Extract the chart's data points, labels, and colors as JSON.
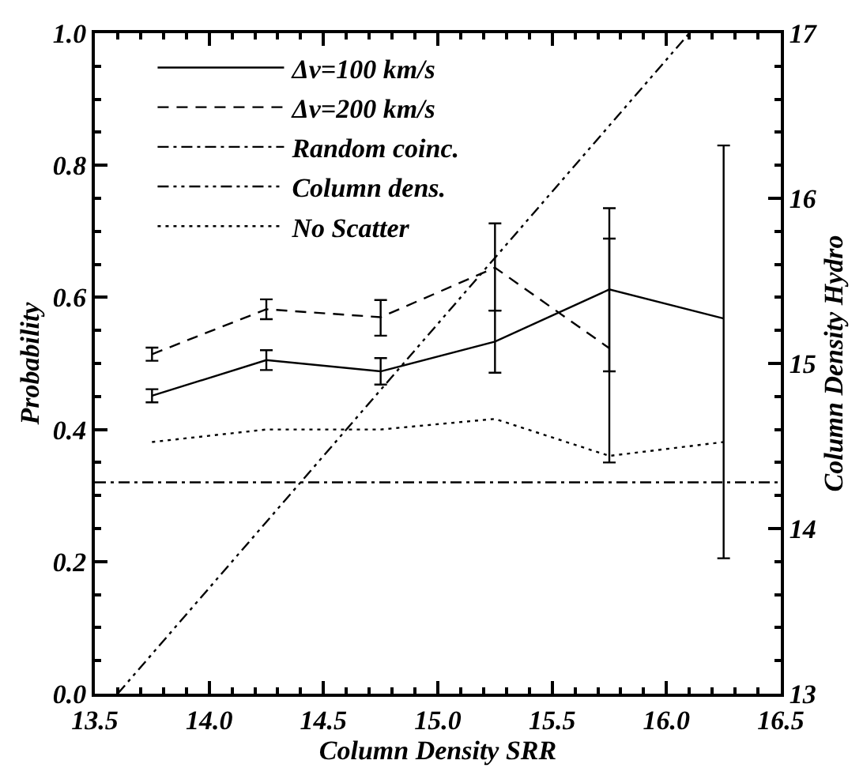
{
  "chart_data": {
    "type": "line",
    "xlabel": "Column Density SRR",
    "ylabel": "Probability",
    "y2label": "Column Density Hydro",
    "x": [
      13.75,
      14.25,
      14.75,
      15.25,
      15.75,
      16.25
    ],
    "series": [
      {
        "name": "Δv=100 km/s",
        "color": "#000000",
        "line_style": "solid",
        "values": [
          0.451,
          0.505,
          0.488,
          0.533,
          0.612,
          0.568
        ],
        "errors": [
          0.01,
          0.015,
          0.02,
          [
            0.486,
            0.58
          ],
          [
            0.488,
            0.689
          ],
          [
            0.205,
            0.83
          ]
        ]
      },
      {
        "name": "Δv=200 km/s",
        "color": "#000000",
        "line_style": "dashed",
        "values": [
          0.514,
          0.582,
          0.57,
          0.645,
          0.523,
          null
        ],
        "errors": [
          0.01,
          0.015,
          [
            0.542,
            0.596
          ],
          [
            0.58,
            0.712
          ],
          [
            0.35,
            0.735
          ],
          null
        ]
      },
      {
        "name": "Random coinc.",
        "color": "#000000",
        "line_style": "dashdot",
        "x": [
          13.5,
          16.5
        ],
        "values": [
          0.32,
          0.32
        ]
      },
      {
        "name": "Column dens.",
        "color": "#000000",
        "line_style": "dashdotdot",
        "axis": "y2",
        "x": [
          13.6,
          16.1
        ],
        "values": [
          13,
          17
        ]
      },
      {
        "name": "No Scatter",
        "color": "#000000",
        "line_style": "dotted",
        "values": [
          0.381,
          0.4,
          0.4,
          0.416,
          0.36,
          0.381
        ]
      }
    ],
    "xlim": [
      13.5,
      16.5
    ],
    "xticks": [
      {
        "value": 13.5,
        "label": "13.5"
      },
      {
        "value": 14.0,
        "label": "14.0"
      },
      {
        "value": 14.5,
        "label": "14.5"
      },
      {
        "value": 15.0,
        "label": "15.0"
      },
      {
        "value": 15.5,
        "label": "15.5"
      },
      {
        "value": 16.0,
        "label": "16.0"
      },
      {
        "value": 16.5,
        "label": "16.5"
      }
    ],
    "ylim": [
      0,
      1
    ],
    "yticks": [
      {
        "value": 0,
        "label": "0.0"
      },
      {
        "value": 0.2,
        "label": "0.2"
      },
      {
        "value": 0.4,
        "label": "0.4"
      },
      {
        "value": 0.6,
        "label": "0.6"
      },
      {
        "value": 0.8,
        "label": "0.8"
      },
      {
        "value": 1.0,
        "label": "1.0"
      }
    ],
    "y2lim": [
      13,
      17
    ],
    "y2ticks": [
      13,
      14,
      15,
      16,
      17
    ],
    "legend": "top left",
    "marker": "none"
  }
}
